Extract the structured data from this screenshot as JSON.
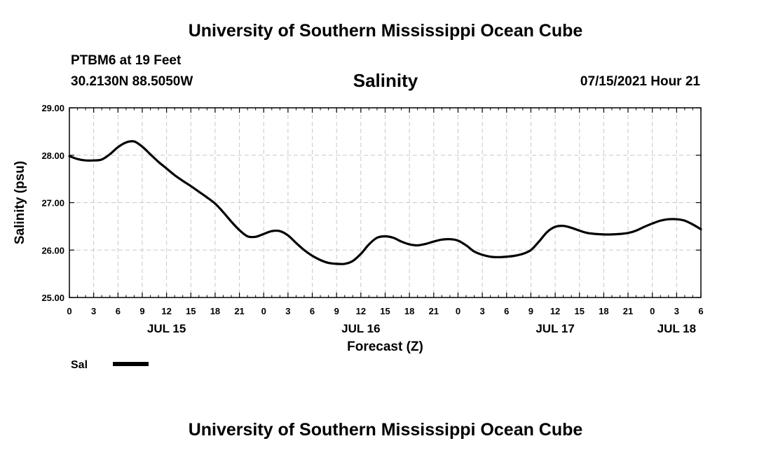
{
  "header": {
    "title": "University of Southern Mississippi Ocean Cube",
    "station": "PTBM6 at 19 Feet",
    "coordinates": "30.2130N  88.5050W",
    "parameter": "Salinity",
    "timestamp": "07/15/2021 Hour 21"
  },
  "footer": {
    "title": "University of Southern Mississippi Ocean Cube"
  },
  "chart_data": {
    "type": "line",
    "title": "Salinity",
    "xlabel": "Forecast (Z)",
    "ylabel": "Salinity (psu)",
    "ylim": [
      25,
      29
    ],
    "xlim": [
      0,
      78
    ],
    "x_units": "hours since JUL 15 00Z",
    "grid": true,
    "legend_position": "bottom-left",
    "yticks": [
      {
        "value": 25,
        "label": "25.00"
      },
      {
        "value": 26,
        "label": "26.00"
      },
      {
        "value": 27,
        "label": "27.00"
      },
      {
        "value": 28,
        "label": "28.00"
      },
      {
        "value": 29,
        "label": "29.00"
      }
    ],
    "xticks": [
      {
        "value": 0,
        "label": "0"
      },
      {
        "value": 3,
        "label": "3"
      },
      {
        "value": 6,
        "label": "6"
      },
      {
        "value": 9,
        "label": "9"
      },
      {
        "value": 12,
        "label": "12"
      },
      {
        "value": 15,
        "label": "15"
      },
      {
        "value": 18,
        "label": "18"
      },
      {
        "value": 21,
        "label": "21"
      },
      {
        "value": 24,
        "label": "0"
      },
      {
        "value": 27,
        "label": "3"
      },
      {
        "value": 30,
        "label": "6"
      },
      {
        "value": 33,
        "label": "9"
      },
      {
        "value": 36,
        "label": "12"
      },
      {
        "value": 39,
        "label": "15"
      },
      {
        "value": 42,
        "label": "18"
      },
      {
        "value": 45,
        "label": "21"
      },
      {
        "value": 48,
        "label": "0"
      },
      {
        "value": 51,
        "label": "3"
      },
      {
        "value": 54,
        "label": "6"
      },
      {
        "value": 57,
        "label": "9"
      },
      {
        "value": 60,
        "label": "12"
      },
      {
        "value": 63,
        "label": "15"
      },
      {
        "value": 66,
        "label": "18"
      },
      {
        "value": 69,
        "label": "21"
      },
      {
        "value": 72,
        "label": "0"
      },
      {
        "value": 75,
        "label": "3"
      },
      {
        "value": 78,
        "label": "6"
      }
    ],
    "day_labels": [
      {
        "value": 12,
        "label": "JUL 15"
      },
      {
        "value": 36,
        "label": "JUL 16"
      },
      {
        "value": 60,
        "label": "JUL 17"
      },
      {
        "value": 75,
        "label": "JUL 18"
      }
    ],
    "series": [
      {
        "name": "Sal",
        "color": "#000000",
        "x": [
          0,
          1,
          2,
          3,
          4,
          5,
          6,
          7,
          8,
          9,
          10,
          11,
          12,
          13,
          14,
          15,
          16,
          17,
          18,
          19,
          20,
          21,
          22,
          23,
          24,
          25,
          26,
          27,
          28,
          29,
          30,
          31,
          32,
          33,
          34,
          35,
          36,
          37,
          38,
          39,
          40,
          41,
          42,
          43,
          44,
          45,
          46,
          47,
          48,
          49,
          50,
          51,
          52,
          53,
          54,
          55,
          56,
          57,
          58,
          59,
          60,
          61,
          62,
          63,
          64,
          65,
          66,
          67,
          68,
          69,
          70,
          71,
          72,
          73,
          74,
          75,
          76,
          77,
          78
        ],
        "values": [
          27.98,
          27.92,
          27.89,
          27.89,
          27.91,
          28.02,
          28.17,
          28.27,
          28.29,
          28.18,
          28.02,
          27.86,
          27.72,
          27.58,
          27.46,
          27.35,
          27.23,
          27.11,
          26.98,
          26.8,
          26.6,
          26.42,
          26.29,
          26.28,
          26.34,
          26.4,
          26.4,
          26.31,
          26.15,
          26.0,
          25.88,
          25.79,
          25.73,
          25.71,
          25.71,
          25.77,
          25.92,
          26.12,
          26.26,
          26.29,
          26.26,
          26.18,
          26.12,
          26.1,
          26.13,
          26.18,
          26.22,
          26.23,
          26.2,
          26.1,
          25.97,
          25.9,
          25.86,
          25.85,
          25.86,
          25.88,
          25.92,
          26.0,
          26.18,
          26.38,
          26.49,
          26.51,
          26.47,
          26.41,
          26.36,
          26.34,
          26.33,
          26.33,
          26.34,
          26.36,
          26.41,
          26.49,
          26.56,
          26.62,
          26.65,
          26.65,
          26.62,
          26.54,
          26.44
        ]
      }
    ]
  }
}
